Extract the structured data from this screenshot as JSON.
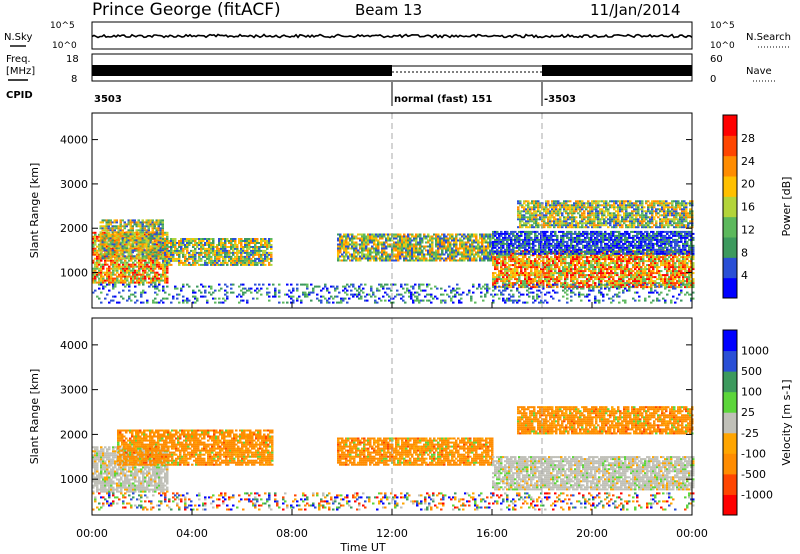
{
  "header": {
    "station": "Prince George (fitACF)",
    "beam": "Beam 13",
    "date": "11/Jan/2014"
  },
  "status": {
    "nsky_label": "N.Sky",
    "nsky_ticks": [
      "10^5",
      "10^0"
    ],
    "nsearch_label": "N.Search",
    "nsearch_ticks": [
      "10^5",
      "10^0"
    ],
    "freq_label": "Freq.",
    "freq_unit": "[MHz]",
    "freq_ticks": [
      "18",
      "8"
    ],
    "nave_label": "Nave",
    "nave_ticks": [
      "60",
      "0"
    ],
    "cpid_label": "CPID",
    "cpid_segments": [
      {
        "label": "3503",
        "start_h": 0,
        "end_h": 12
      },
      {
        "label": "normal (fast) 151",
        "start_h": 12,
        "end_h": 18
      },
      {
        "label": "-3503",
        "start_h": 18,
        "end_h": 24
      }
    ]
  },
  "chart_data": [
    {
      "type": "heatmap",
      "name": "power",
      "ylabel": "Slant Range [km]",
      "ylim": [
        200,
        4600
      ],
      "yticks": [
        1000,
        2000,
        3000,
        4000
      ],
      "xlim": [
        0,
        24
      ],
      "colorbar": {
        "label": "Power [dB]",
        "ticks": [
          "28",
          "24",
          "20",
          "16",
          "12",
          "8",
          "4"
        ],
        "colors": [
          "#0000ff",
          "#2a4fd6",
          "#3d9a5e",
          "#5cb85c",
          "#b3d43a",
          "#ffc000",
          "#ff8c00",
          "#ff4500",
          "#ff0000"
        ]
      },
      "regions": [
        {
          "t0": 0.0,
          "t1": 3.0,
          "r0": 750,
          "r1": 1900,
          "level": "high"
        },
        {
          "t0": 0.3,
          "t1": 2.8,
          "r0": 1300,
          "r1": 2200,
          "level": "mid"
        },
        {
          "t0": 2.8,
          "t1": 7.2,
          "r0": 1150,
          "r1": 1750,
          "level": "mid"
        },
        {
          "t0": 9.8,
          "t1": 16.0,
          "r0": 1250,
          "r1": 1850,
          "level": "mid"
        },
        {
          "t0": 16.0,
          "t1": 24.0,
          "r0": 650,
          "r1": 1500,
          "level": "high"
        },
        {
          "t0": 16.0,
          "t1": 24.0,
          "r0": 1400,
          "r1": 1900,
          "level": "low"
        },
        {
          "t0": 17.0,
          "t1": 24.0,
          "r0": 2000,
          "r1": 2600,
          "level": "mid"
        },
        {
          "t0": 0.0,
          "t1": 24.0,
          "r0": 300,
          "r1": 750,
          "level": "sparse"
        }
      ]
    },
    {
      "type": "heatmap",
      "name": "velocity",
      "ylabel": "Slant Range [km]",
      "ylim": [
        200,
        4600
      ],
      "yticks": [
        1000,
        2000,
        3000,
        4000
      ],
      "xlim": [
        0,
        24
      ],
      "colorbar": {
        "label": "Velocity [m s-1]",
        "ticks": [
          "1000",
          "500",
          "100",
          "25",
          "-25",
          "-100",
          "-500",
          "-1000"
        ],
        "colors": [
          "#ff0000",
          "#ff4500",
          "#ff8c00",
          "#ffa500",
          "#c0c0b8",
          "#5cd63a",
          "#3d9a5e",
          "#2a4fd6",
          "#0000ff"
        ]
      },
      "regions": [
        {
          "t0": 0.0,
          "t1": 3.0,
          "r0": 700,
          "r1": 1700,
          "level": "ground"
        },
        {
          "t0": 1.0,
          "t1": 7.2,
          "r0": 1300,
          "r1": 2100,
          "level": "neg"
        },
        {
          "t0": 9.8,
          "t1": 16.0,
          "r0": 1300,
          "r1": 1900,
          "level": "neg"
        },
        {
          "t0": 16.0,
          "t1": 24.0,
          "r0": 750,
          "r1": 1500,
          "level": "ground"
        },
        {
          "t0": 17.0,
          "t1": 24.0,
          "r0": 2000,
          "r1": 2600,
          "level": "neg"
        },
        {
          "t0": 0.0,
          "t1": 24.0,
          "r0": 300,
          "r1": 700,
          "level": "sparse"
        }
      ]
    }
  ],
  "xaxis": {
    "ticks": [
      "00:00",
      "04:00",
      "08:00",
      "12:00",
      "16:00",
      "20:00",
      "00:00"
    ],
    "tick_hours": [
      0,
      4,
      8,
      12,
      16,
      20,
      24
    ],
    "label": "Time UT",
    "dashed_hours": [
      12,
      18
    ]
  }
}
